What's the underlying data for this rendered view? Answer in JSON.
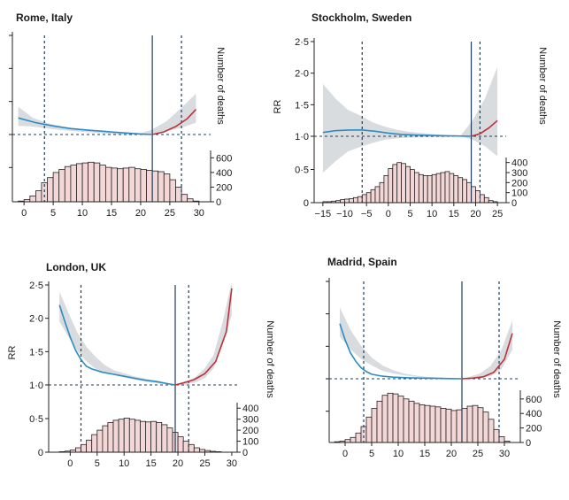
{
  "chart_data": [
    {
      "type": "line",
      "title": "Rome, Italy",
      "ylabel": "",
      "y2label": "Number of deaths",
      "ylim": [
        0.7,
        2.5
      ],
      "yticks": [],
      "xlim": [
        -2,
        32
      ],
      "xticks": [
        0,
        5,
        10,
        15,
        20,
        25,
        30
      ],
      "y2ticks": [
        0,
        200,
        400,
        600
      ],
      "hist_max": 700,
      "mmt": 22,
      "percentile_low": 3.5,
      "percentile_high": 27,
      "series": [
        {
          "role": "cold",
          "x": [
            -1,
            2,
            5,
            8,
            11,
            14,
            17,
            20,
            22
          ],
          "y": [
            1.25,
            1.18,
            1.13,
            1.09,
            1.065,
            1.045,
            1.025,
            1.008,
            1.0
          ]
        },
        {
          "role": "heat",
          "x": [
            22,
            24,
            26,
            28,
            29.5
          ],
          "y": [
            1.0,
            1.04,
            1.12,
            1.24,
            1.38
          ]
        }
      ],
      "ci_upper": [
        1.42,
        1.25,
        1.17,
        1.12,
        1.09,
        1.065,
        1.04,
        1.015,
        1.0,
        1.07,
        1.2,
        1.4,
        1.62
      ],
      "ci_lower": [
        1.13,
        1.12,
        1.09,
        1.065,
        1.045,
        1.03,
        1.012,
        1.0,
        1.0,
        1.01,
        1.05,
        1.1,
        1.18
      ],
      "histogram": {
        "bins": [
          -1,
          0,
          1,
          2,
          3,
          4,
          5,
          6,
          7,
          8,
          9,
          10,
          11,
          12,
          13,
          14,
          15,
          16,
          17,
          18,
          19,
          20,
          21,
          22,
          23,
          24,
          25,
          26,
          27,
          28,
          29
        ],
        "counts": [
          10,
          30,
          80,
          150,
          260,
          330,
          400,
          440,
          480,
          500,
          520,
          530,
          540,
          530,
          500,
          470,
          460,
          450,
          460,
          470,
          450,
          440,
          430,
          420,
          410,
          380,
          300,
          200,
          100,
          40,
          10
        ]
      }
    },
    {
      "type": "line",
      "title": "Stockholm, Sweden",
      "ylabel": "RR",
      "y2label": "Number of deaths",
      "ylim": [
        0,
        2.5
      ],
      "yticks": [
        "0",
        "0·5",
        "1·0",
        "1·5",
        "2·0",
        "2·5"
      ],
      "xlim": [
        -17,
        27
      ],
      "xticks": [
        -15,
        -10,
        -5,
        0,
        5,
        10,
        15,
        20,
        25
      ],
      "y2ticks": [
        0,
        100,
        200,
        300,
        400
      ],
      "hist_max": 450,
      "mmt": 19,
      "percentile_low": -6,
      "percentile_high": 21,
      "series": [
        {
          "role": "cold",
          "x": [
            -15,
            -12,
            -9,
            -6,
            -3,
            0,
            3,
            6,
            9,
            12,
            15,
            19
          ],
          "y": [
            1.06,
            1.09,
            1.1,
            1.1,
            1.08,
            1.05,
            1.03,
            1.02,
            1.015,
            1.01,
            1.005,
            1.0
          ]
        },
        {
          "role": "heat",
          "x": [
            19,
            21,
            23,
            25
          ],
          "y": [
            1.0,
            1.04,
            1.13,
            1.25
          ]
        }
      ],
      "ci_upper": [
        1.83,
        1.6,
        1.42,
        1.33,
        1.22,
        1.15,
        1.1,
        1.07,
        1.05,
        1.03,
        1.02,
        1.0,
        1.25,
        1.6,
        2.1
      ],
      "ci_lower": [
        0.45,
        0.62,
        0.77,
        0.84,
        0.9,
        0.95,
        0.97,
        0.98,
        0.985,
        0.99,
        0.99,
        1.0,
        0.95,
        0.85,
        0.7
      ],
      "histogram": {
        "bins": [
          -15,
          -14,
          -13,
          -12,
          -11,
          -10,
          -9,
          -8,
          -7,
          -6,
          -5,
          -4,
          -3,
          -2,
          -1,
          0,
          1,
          2,
          3,
          4,
          5,
          6,
          7,
          8,
          9,
          10,
          11,
          12,
          13,
          14,
          15,
          16,
          17,
          18,
          19,
          20,
          21,
          22,
          23,
          24
        ],
        "counts": [
          10,
          10,
          15,
          20,
          30,
          35,
          40,
          50,
          60,
          80,
          100,
          130,
          160,
          200,
          270,
          340,
          380,
          400,
          390,
          360,
          330,
          300,
          280,
          270,
          270,
          280,
          290,
          300,
          310,
          290,
          270,
          250,
          230,
          200,
          160,
          120,
          80,
          50,
          20,
          10
        ]
      }
    },
    {
      "type": "line",
      "title": "London, UK",
      "ylabel": "RR",
      "y2label": "Number of deaths",
      "ylim": [
        0,
        2.5
      ],
      "yticks": [
        "0",
        "0·5",
        "1·0",
        "1·5",
        "2·0",
        "2·5"
      ],
      "xlim": [
        -4,
        31
      ],
      "xticks": [
        0,
        5,
        10,
        15,
        20,
        25,
        30
      ],
      "y2ticks": [
        0,
        100,
        200,
        300,
        400
      ],
      "hist_max": 450,
      "mmt": 19.5,
      "percentile_low": 2,
      "percentile_high": 22,
      "series": [
        {
          "role": "cold",
          "x": [
            -2,
            -1,
            0,
            1,
            2,
            3,
            4,
            6,
            8,
            10,
            12,
            14,
            16,
            18,
            19.5
          ],
          "y": [
            2.2,
            1.95,
            1.72,
            1.52,
            1.38,
            1.28,
            1.24,
            1.19,
            1.16,
            1.13,
            1.1,
            1.07,
            1.05,
            1.02,
            1.0
          ]
        },
        {
          "role": "heat",
          "x": [
            19.5,
            21,
            23,
            25,
            27,
            29,
            30
          ],
          "y": [
            1.0,
            1.03,
            1.08,
            1.17,
            1.35,
            1.8,
            2.45
          ]
        }
      ],
      "ci_upper": [
        2.4,
        2.08,
        1.78,
        1.57,
        1.42,
        1.3,
        1.22,
        1.18,
        1.14,
        1.11,
        1.08,
        1.06,
        1.03,
        1.0,
        1.05,
        1.12,
        1.25,
        1.45,
        1.95,
        2.55
      ],
      "ci_lower": [
        1.95,
        1.72,
        1.5,
        1.35,
        1.24,
        1.18,
        1.15,
        1.12,
        1.09,
        1.06,
        1.04,
        1.02,
        1.01,
        1.0,
        1.01,
        1.04,
        1.1,
        1.25,
        1.6,
        2.05
      ],
      "histogram": {
        "bins": [
          -2,
          -1,
          0,
          1,
          2,
          3,
          4,
          5,
          6,
          7,
          8,
          9,
          10,
          11,
          12,
          13,
          14,
          15,
          16,
          17,
          18,
          19,
          20,
          21,
          22,
          23,
          24,
          25,
          26,
          27
        ],
        "counts": [
          5,
          10,
          20,
          40,
          70,
          110,
          160,
          200,
          240,
          270,
          290,
          300,
          310,
          300,
          290,
          280,
          275,
          280,
          270,
          250,
          220,
          180,
          140,
          100,
          70,
          40,
          25,
          15,
          8,
          5
        ]
      }
    },
    {
      "type": "line",
      "title": "Madrid, Spain",
      "ylabel": "",
      "y2label": "Number of deaths",
      "ylim": [
        0.7,
        2.5
      ],
      "yticks": [],
      "xlim": [
        -3,
        33
      ],
      "xticks": [
        0,
        5,
        10,
        15,
        20,
        25,
        30
      ],
      "y2ticks": [
        0,
        200,
        400,
        600
      ],
      "hist_max": 720,
      "mmt": 22,
      "percentile_low": 3.5,
      "percentile_high": 29,
      "series": [
        {
          "role": "cold",
          "x": [
            -1,
            0,
            1,
            2,
            3,
            4,
            5,
            7,
            9,
            12,
            15,
            18,
            22
          ],
          "y": [
            1.85,
            1.6,
            1.4,
            1.27,
            1.17,
            1.11,
            1.07,
            1.04,
            1.025,
            1.015,
            1.01,
            1.005,
            1.0
          ]
        },
        {
          "role": "heat",
          "x": [
            22,
            24,
            26,
            28,
            30,
            31.5
          ],
          "y": [
            1.0,
            1.01,
            1.03,
            1.1,
            1.3,
            1.7
          ]
        }
      ],
      "ci_upper": [
        2.1,
        1.75,
        1.5,
        1.32,
        1.2,
        1.13,
        1.08,
        1.05,
        1.03,
        1.02,
        1.01,
        1.0,
        1.03,
        1.08,
        1.2,
        1.45,
        1.9
      ],
      "ci_lower": [
        1.65,
        1.45,
        1.3,
        1.2,
        1.12,
        1.08,
        1.05,
        1.03,
        1.015,
        1.005,
        1.0,
        1.0,
        1.0,
        1.01,
        1.04,
        1.15,
        1.45
      ],
      "histogram": {
        "bins": [
          -2,
          -1,
          0,
          1,
          2,
          3,
          4,
          5,
          6,
          7,
          8,
          9,
          10,
          11,
          12,
          13,
          14,
          15,
          16,
          17,
          18,
          19,
          20,
          21,
          22,
          23,
          24,
          25,
          26,
          27,
          28,
          29,
          30
        ],
        "counts": [
          10,
          20,
          40,
          70,
          130,
          220,
          350,
          470,
          570,
          650,
          680,
          670,
          640,
          600,
          570,
          540,
          520,
          510,
          500,
          490,
          470,
          460,
          440,
          450,
          470,
          500,
          510,
          480,
          420,
          320,
          180,
          80,
          20
        ]
      }
    }
  ]
}
